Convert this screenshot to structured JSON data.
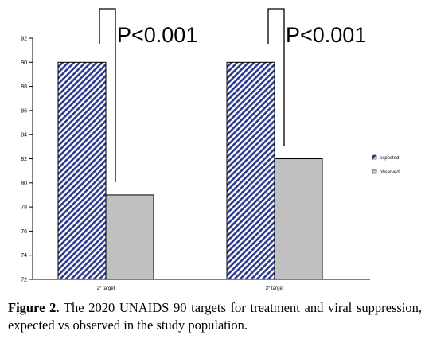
{
  "chart_data": {
    "type": "bar",
    "categories": [
      "2° target",
      "3° target"
    ],
    "series": [
      {
        "name": "expected",
        "values": [
          90,
          90
        ],
        "color": "#2d3b8c",
        "pattern": "diagonal-hatch"
      },
      {
        "name": "observed",
        "values": [
          79,
          82
        ],
        "color": "#c0c0c0"
      }
    ],
    "ylim": [
      72,
      92
    ],
    "yticks": [
      72,
      74,
      76,
      78,
      80,
      82,
      84,
      86,
      88,
      90,
      92
    ],
    "ytick_labels": [
      "72",
      "74",
      "76",
      "78",
      "80",
      "82",
      "84",
      "86",
      "88",
      "90",
      "92"
    ],
    "grid": false,
    "legend_position": "right",
    "annotations": [
      {
        "category_index": 0,
        "text": "P<0.001"
      },
      {
        "category_index": 1,
        "text": "P<0.001"
      }
    ]
  },
  "caption": {
    "label": "Figure 2.",
    "text": " The 2020 UNAIDS 90 targets for treatment and viral suppression, expected vs observed in the study population."
  }
}
